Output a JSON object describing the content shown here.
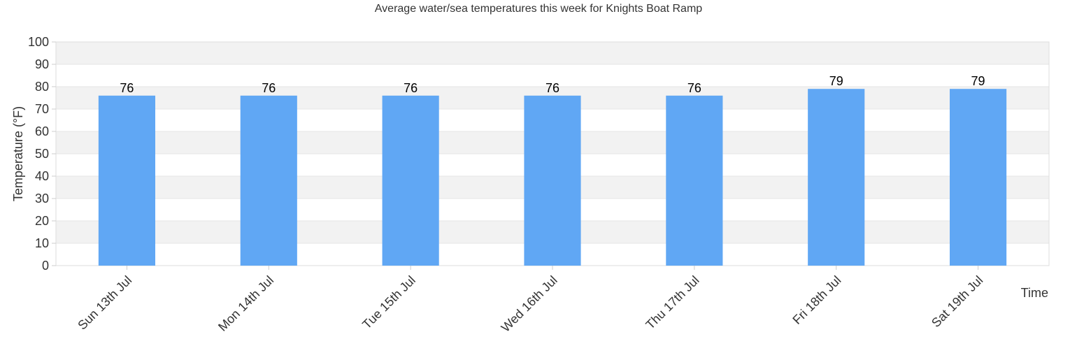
{
  "chart_data": {
    "type": "bar",
    "title": "Average water/sea temperatures this week for Knights Boat Ramp",
    "xlabel": "Time",
    "ylabel": "Temperature (°F)",
    "categories": [
      "Sun 13th Jul",
      "Mon 14th Jul",
      "Tue 15th Jul",
      "Wed 16th Jul",
      "Thu 17th Jul",
      "Fri 18th Jul",
      "Sat 19th Jul"
    ],
    "values": [
      76,
      76,
      76,
      76,
      76,
      79,
      79
    ],
    "ylim": [
      0,
      100
    ],
    "yticks": [
      0,
      10,
      20,
      30,
      40,
      50,
      60,
      70,
      80,
      90,
      100
    ],
    "grid": true,
    "legend": "none",
    "colors": {
      "bar": "#60a7f4",
      "band": "#f2f2f2",
      "grid": "#e6e6e6"
    }
  }
}
